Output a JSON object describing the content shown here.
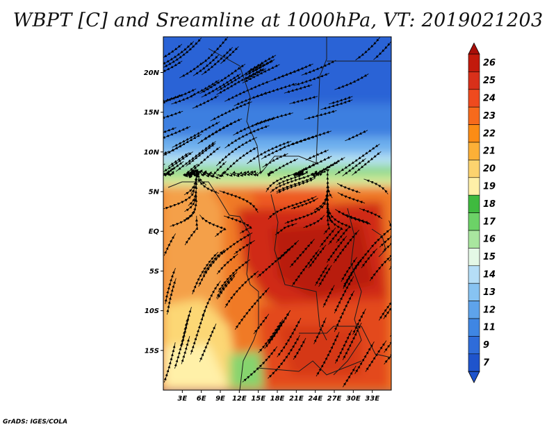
{
  "title": "WBPT [C] and Sreamline at 1000hPa, VT: 2019021203",
  "credit": "GrADS: IGES/COLA",
  "map": {
    "lon_range": [
      0,
      36
    ],
    "lat_range": [
      -20,
      24.5
    ],
    "lat_ticks": [
      {
        "value": 20,
        "label": "20N"
      },
      {
        "value": 15,
        "label": "15N"
      },
      {
        "value": 10,
        "label": "10N"
      },
      {
        "value": 5,
        "label": "5N"
      },
      {
        "value": 0,
        "label": "EQ"
      },
      {
        "value": -5,
        "label": "5S"
      },
      {
        "value": -10,
        "label": "10S"
      },
      {
        "value": -15,
        "label": "15S"
      }
    ],
    "lon_ticks": [
      {
        "value": 3,
        "label": "3E"
      },
      {
        "value": 6,
        "label": "6E"
      },
      {
        "value": 9,
        "label": "9E"
      },
      {
        "value": 12,
        "label": "12E"
      },
      {
        "value": 15,
        "label": "15E"
      },
      {
        "value": 18,
        "label": "18E"
      },
      {
        "value": 21,
        "label": "21E"
      },
      {
        "value": 24,
        "label": "24E"
      },
      {
        "value": 27,
        "label": "27E"
      },
      {
        "value": 30,
        "label": "30E"
      },
      {
        "value": 33,
        "label": "33E"
      }
    ]
  },
  "colorbar": {
    "labels": [
      "26",
      "25",
      "24",
      "23",
      "22",
      "21",
      "20",
      "19",
      "18",
      "17",
      "16",
      "15",
      "14",
      "13",
      "12",
      "11",
      "9",
      "7"
    ],
    "colors": [
      "#c21a0c",
      "#d9301a",
      "#ef4a1e",
      "#f76a1c",
      "#fb8c15",
      "#fcb037",
      "#fcd36e",
      "#fff0a8",
      "#3fba3f",
      "#6cd267",
      "#a9e69f",
      "#e4f8e6",
      "#b5def7",
      "#87c3f2",
      "#5ea3eb",
      "#3f86e3",
      "#2f6cd9",
      "#1f54cc"
    ],
    "top_color": "#a80e08",
    "bottom_color": "#1f54cc"
  }
}
